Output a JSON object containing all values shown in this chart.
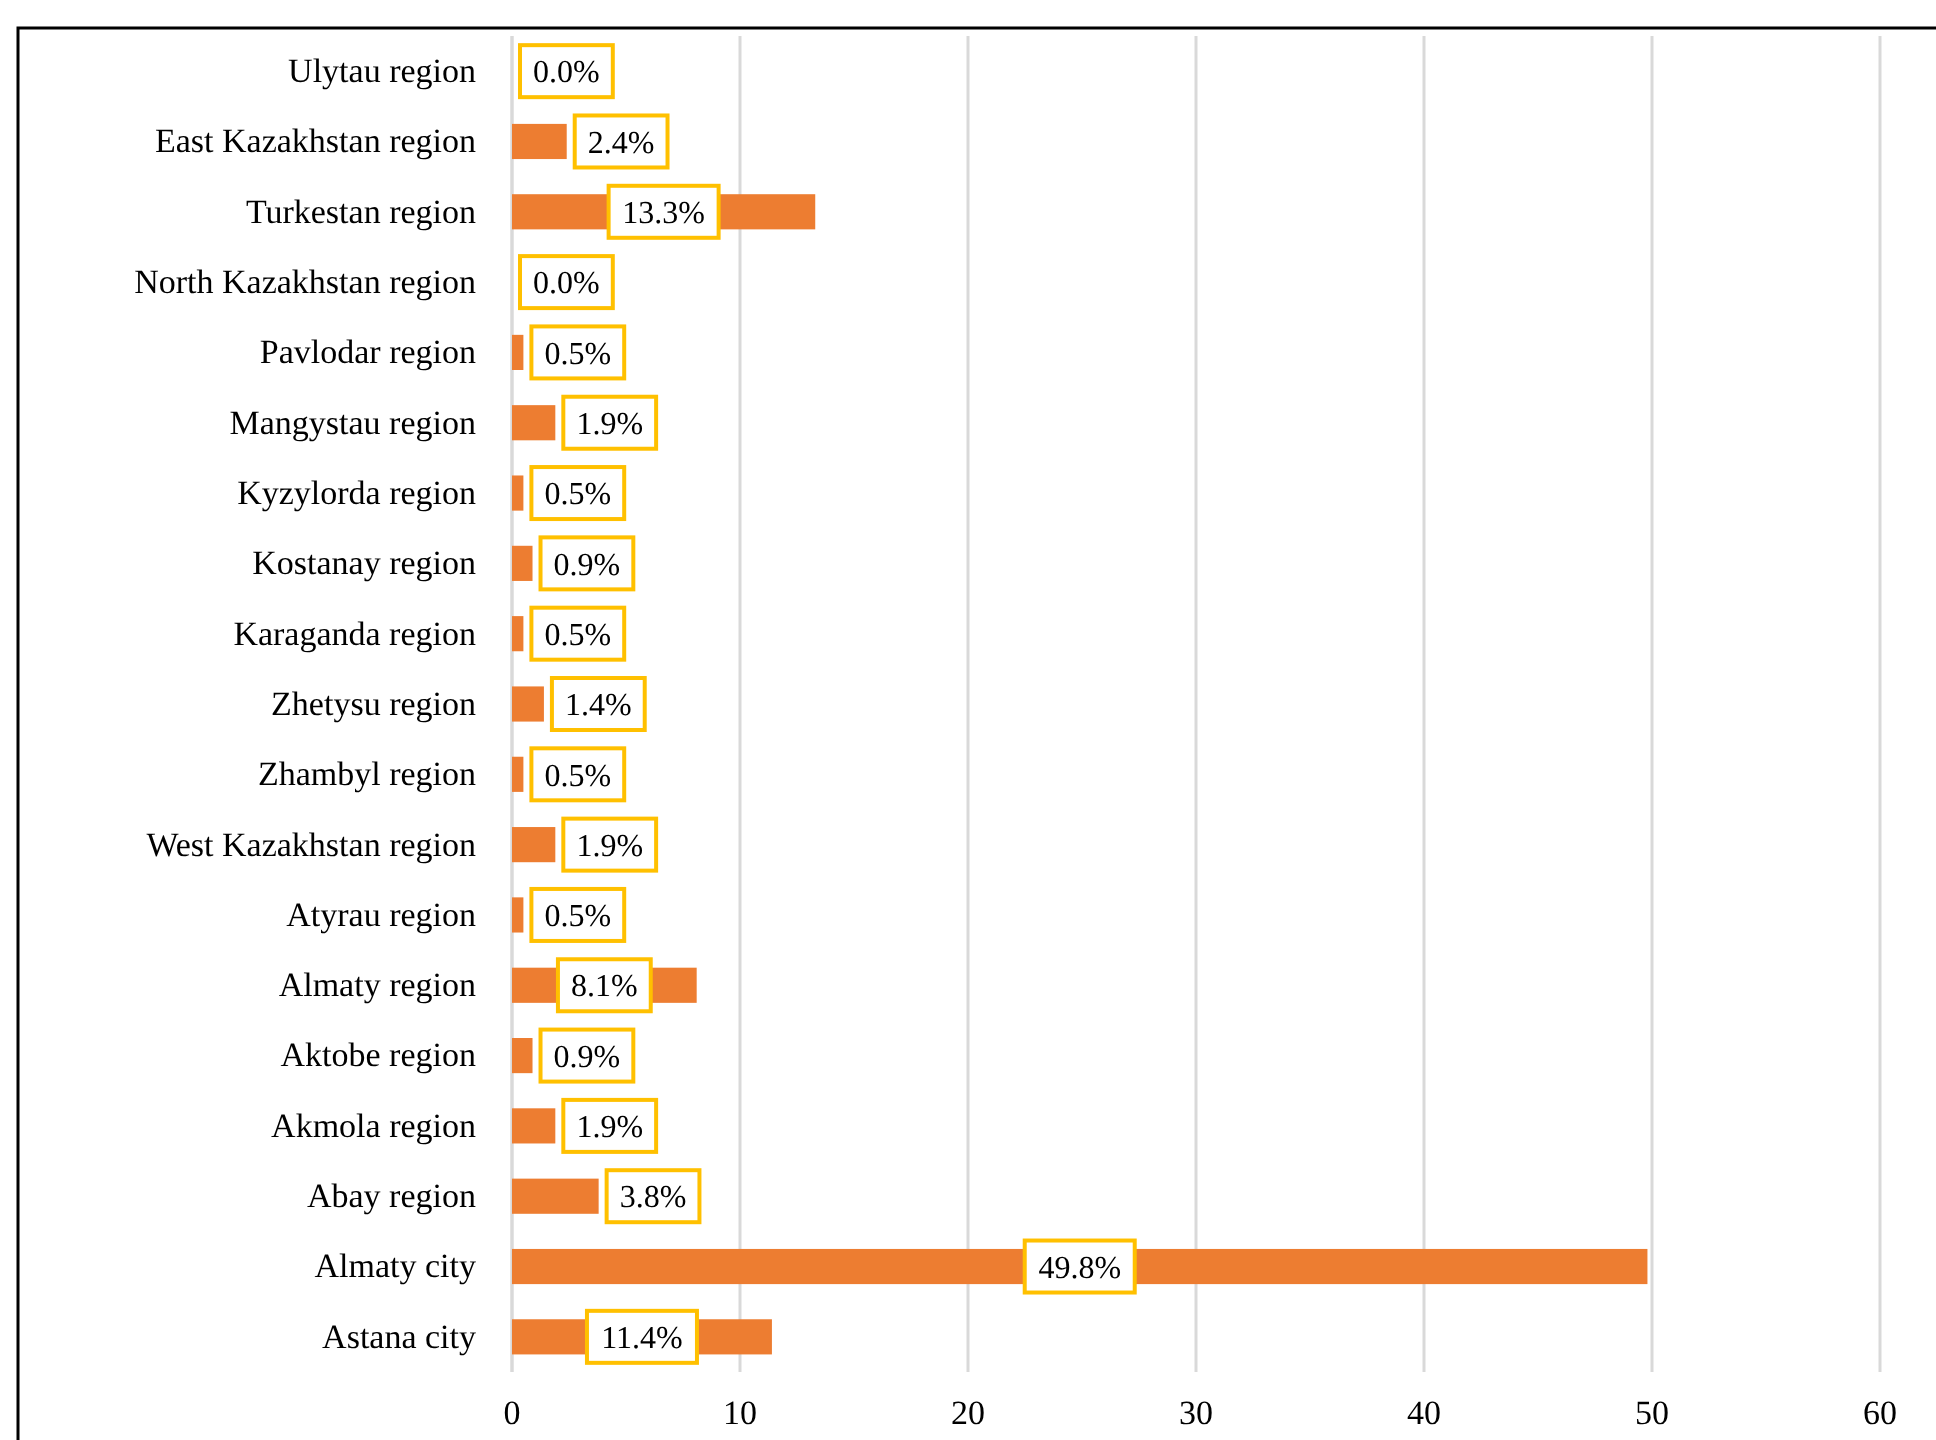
{
  "chart_data": {
    "type": "bar",
    "orientation": "horizontal",
    "categories": [
      "Ulytau region",
      "East Kazakhstan region",
      "Turkestan region",
      "North Kazakhstan region",
      "Pavlodar region",
      "Mangystau region",
      "Kyzylorda region",
      "Kostanay region",
      "Karaganda region",
      "Zhetysu region",
      "Zhambyl region",
      "West Kazakhstan region",
      "Atyrau region",
      "Almaty region",
      "Aktobe region",
      "Akmola region",
      "Abay region",
      "Almaty city",
      "Astana city"
    ],
    "values": [
      0.0,
      2.4,
      13.3,
      0.0,
      0.5,
      1.9,
      0.5,
      0.9,
      0.5,
      1.4,
      0.5,
      1.9,
      0.5,
      8.1,
      0.9,
      1.9,
      3.8,
      49.8,
      11.4
    ],
    "value_labels": [
      "0.0%",
      "2.4%",
      "13.3%",
      "0.0%",
      "0.5%",
      "1.9%",
      "0.5%",
      "0.9%",
      "0.5%",
      "1.4%",
      "0.5%",
      "1.9%",
      "0.5%",
      "8.1%",
      "0.9%",
      "1.9%",
      "3.8%",
      "49.8%",
      "11.4%"
    ],
    "color": "#ed7d31",
    "xlim": [
      0,
      60
    ],
    "xticks": [
      0,
      10,
      20,
      30,
      40,
      50,
      60
    ],
    "grid": "x"
  }
}
